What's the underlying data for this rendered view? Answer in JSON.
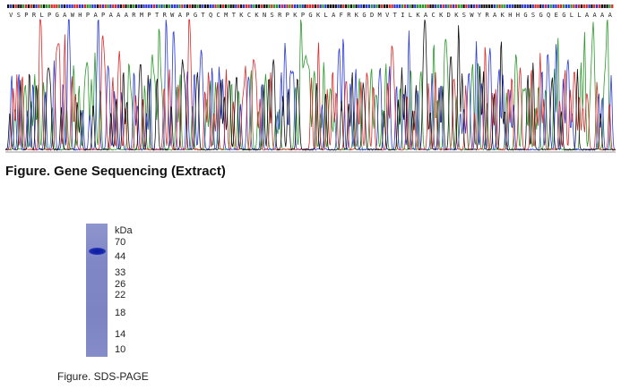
{
  "sequencing": {
    "protein_sequence": "VSPRLPGAWHPAPAAARMPTRWAPGTQCMTKCKNSRPKPGKLAFRKGDMVTILKACKDKSWYRAKHHGSGQEGLLAAAA",
    "trace_colors": {
      "A": "#2a9a2a",
      "C": "#2a3ad8",
      "G": "#111111",
      "T": "#d82a2a"
    }
  },
  "captions": {
    "gene_sequencing": "Figure. Gene Sequencing (Extract)",
    "sds_page": "Figure. SDS-PAGE"
  },
  "gel": {
    "unit_label": "kDa",
    "markers": [
      "70",
      "44",
      "33",
      "26",
      "22",
      "18",
      "14",
      "10"
    ],
    "band_marker": "44"
  }
}
